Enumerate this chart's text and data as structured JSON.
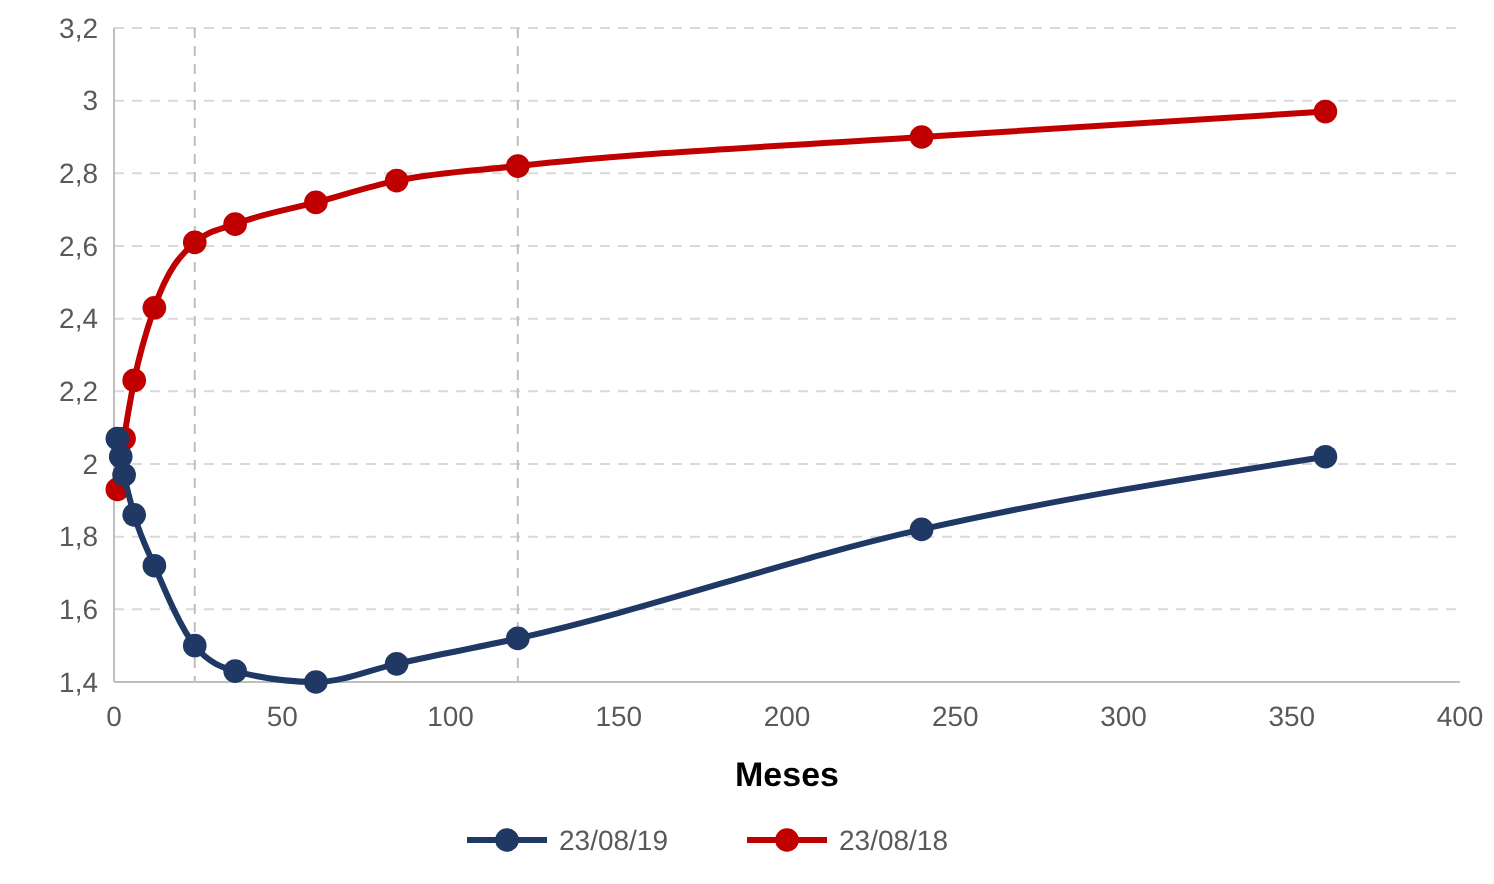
{
  "chart_data": {
    "type": "line",
    "xlabel": "Meses",
    "xlim": [
      0,
      400
    ],
    "xticks": [
      0,
      50,
      100,
      150,
      200,
      250,
      300,
      350,
      400
    ],
    "ylim": [
      1.4,
      3.2
    ],
    "yticks": [
      {
        "value": 1.4,
        "label": "1,4"
      },
      {
        "value": 1.6,
        "label": "1,6"
      },
      {
        "value": 1.8,
        "label": "1,8"
      },
      {
        "value": 2,
        "label": "2"
      },
      {
        "value": 2.2,
        "label": "2,2"
      },
      {
        "value": 2.4,
        "label": "2,4"
      },
      {
        "value": 2.6,
        "label": "2,6"
      },
      {
        "value": 2.8,
        "label": "2,8"
      },
      {
        "value": 3,
        "label": "3"
      },
      {
        "value": 3.2,
        "label": "3,2"
      }
    ],
    "grid": "y",
    "legend": "bottom",
    "marker": "circle",
    "line_style": "solid",
    "ref_lines": [
      {
        "axis": "x",
        "value": 24,
        "color": "#bfbfbf",
        "line_style": "dashed"
      },
      {
        "axis": "x",
        "value": 120,
        "color": "#bfbfbf",
        "line_style": "dashed"
      }
    ],
    "series": [
      {
        "name": "23/08/19",
        "color": "#1f3864",
        "x": [
          1,
          2,
          3,
          6,
          12,
          24,
          36,
          60,
          84,
          120,
          240,
          360
        ],
        "values": [
          2.07,
          2.02,
          1.97,
          1.86,
          1.72,
          1.5,
          1.43,
          1.4,
          1.45,
          1.52,
          1.82,
          2.02
        ]
      },
      {
        "name": "23/08/18",
        "color": "#c00000",
        "x": [
          1,
          3,
          6,
          12,
          24,
          36,
          60,
          84,
          120,
          240,
          360
        ],
        "values": [
          1.93,
          2.07,
          2.23,
          2.43,
          2.61,
          2.66,
          2.72,
          2.78,
          2.82,
          2.9,
          2.97
        ]
      }
    ]
  }
}
